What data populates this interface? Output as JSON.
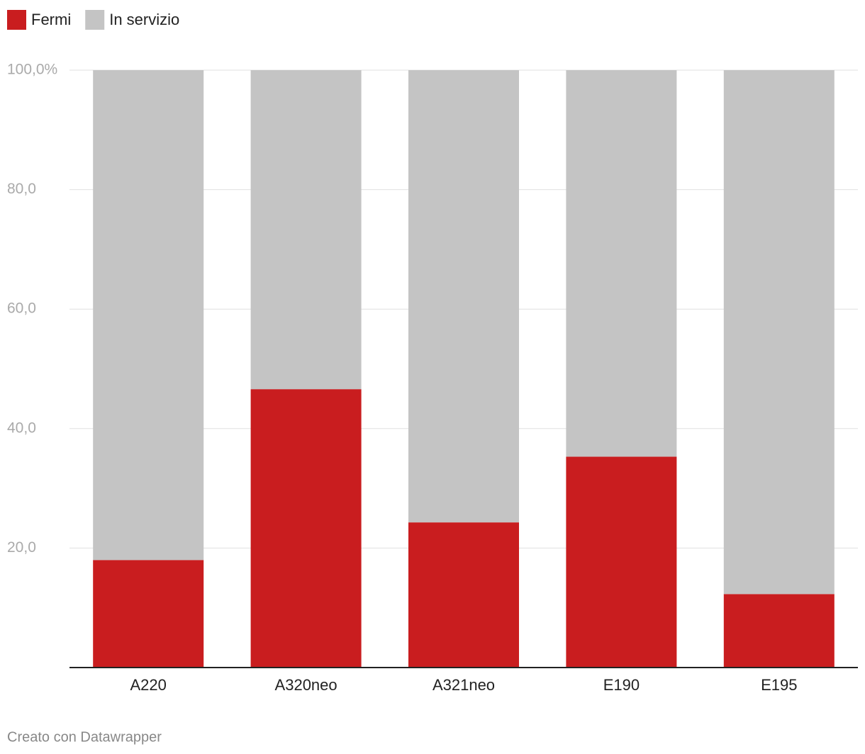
{
  "chart_data": {
    "type": "stacked-bar",
    "categories": [
      "A220",
      "A320neo",
      "A321neo",
      "E190",
      "E195"
    ],
    "series": [
      {
        "name": "Fermi",
        "color": "#c91d1f",
        "values": [
          18.0,
          46.6,
          24.3,
          35.3,
          12.3
        ]
      },
      {
        "name": "In servizio",
        "color": "#c4c4c4",
        "values": [
          82.0,
          53.4,
          75.7,
          64.7,
          87.7
        ]
      }
    ],
    "ylim": [
      0,
      100
    ],
    "yticks": [
      {
        "value": 20,
        "label": "20,0"
      },
      {
        "value": 40,
        "label": "40,0"
      },
      {
        "value": 60,
        "label": "60,0"
      },
      {
        "value": 80,
        "label": "80,0"
      },
      {
        "value": 100,
        "label": "100,0%"
      }
    ],
    "grid": true,
    "legend": "top-left",
    "footer": "Creato con Datawrapper"
  }
}
